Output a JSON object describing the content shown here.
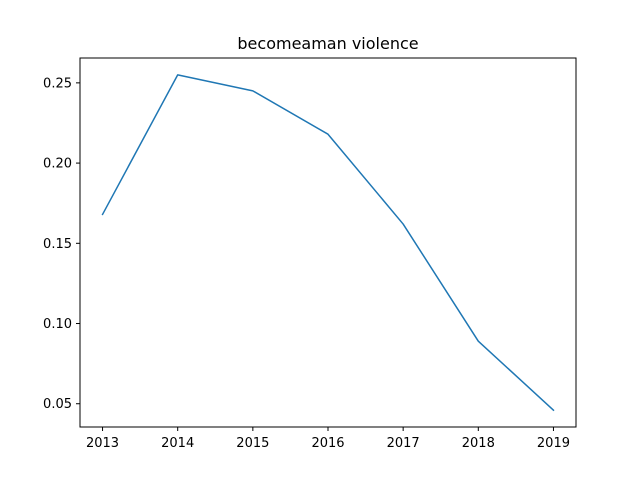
{
  "chart_data": {
    "type": "line",
    "title": "becomeaman violence",
    "xlabel": "",
    "ylabel": "",
    "x": [
      2013,
      2014,
      2015,
      2016,
      2017,
      2018,
      2019
    ],
    "series": [
      {
        "values": [
          0.168,
          0.255,
          0.245,
          0.218,
          0.162,
          0.089,
          0.046
        ],
        "color": "#1f77b4"
      }
    ],
    "xticks": [
      "2013",
      "2014",
      "2015",
      "2016",
      "2017",
      "2018",
      "2019"
    ],
    "yticks": [
      "0.05",
      "0.10",
      "0.15",
      "0.20",
      "0.25"
    ],
    "ytick_values": [
      0.05,
      0.1,
      0.15,
      0.2,
      0.25
    ],
    "xlim": [
      2012.7,
      2019.3
    ],
    "ylim": [
      0.0355,
      0.2655
    ],
    "grid": false,
    "legend": "none"
  }
}
